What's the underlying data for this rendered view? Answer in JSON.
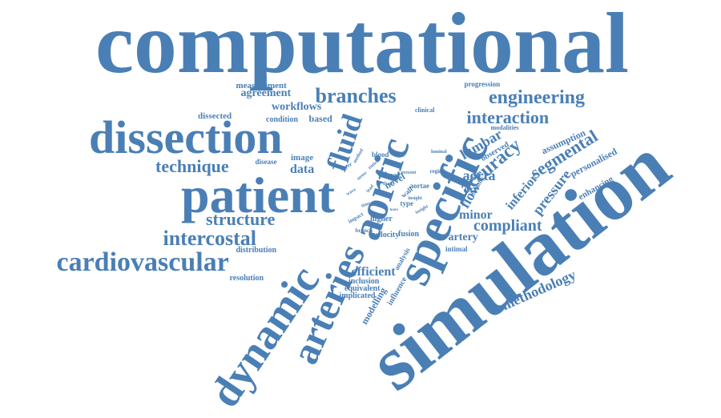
{
  "colors": {
    "word": "#4a7fb5",
    "background": "#ffffff"
  },
  "words": [
    {
      "text": "computational"
    },
    {
      "text": "simulation"
    },
    {
      "text": "patient"
    },
    {
      "text": "dissection"
    },
    {
      "text": "specific"
    },
    {
      "text": "aortic"
    },
    {
      "text": "dynamic"
    },
    {
      "text": "arteries"
    },
    {
      "text": "fluid"
    },
    {
      "text": "cardiovascular"
    },
    {
      "text": "intercostal"
    },
    {
      "text": "branches"
    },
    {
      "text": "engineering"
    },
    {
      "text": "interaction"
    },
    {
      "text": "technique"
    },
    {
      "text": "structure"
    },
    {
      "text": "accuracy"
    },
    {
      "text": "segmental"
    },
    {
      "text": "methodology"
    },
    {
      "text": "compliant"
    },
    {
      "text": "lumbar"
    },
    {
      "text": "aorta"
    },
    {
      "text": "minor"
    },
    {
      "text": "pressure"
    },
    {
      "text": "flow"
    },
    {
      "text": "inferior"
    },
    {
      "text": "data"
    },
    {
      "text": "efficient"
    },
    {
      "text": "artery"
    },
    {
      "text": "agreement"
    },
    {
      "text": "workflows"
    },
    {
      "text": "measurement"
    },
    {
      "text": "based"
    },
    {
      "text": "condition"
    },
    {
      "text": "dissected"
    },
    {
      "text": "image"
    },
    {
      "text": "disease"
    },
    {
      "text": "personalised"
    },
    {
      "text": "assumption"
    },
    {
      "text": "enhancing"
    },
    {
      "text": "modelling"
    },
    {
      "text": "implicated"
    },
    {
      "text": "equivalent"
    },
    {
      "text": "inclusion"
    },
    {
      "text": "resolution"
    },
    {
      "text": "distribution"
    },
    {
      "text": "fusion"
    },
    {
      "text": "intimal"
    },
    {
      "text": "analysis"
    },
    {
      "text": "influence"
    },
    {
      "text": "velocity"
    },
    {
      "text": "higher"
    },
    {
      "text": "novel"
    },
    {
      "text": "blood"
    },
    {
      "text": "shear"
    },
    {
      "text": "wall"
    },
    {
      "text": "type"
    },
    {
      "text": "aortae"
    },
    {
      "text": "layer"
    },
    {
      "text": "clinical"
    },
    {
      "text": "progression"
    },
    {
      "text": "modalities"
    },
    {
      "text": "observed"
    },
    {
      "text": "healthy"
    },
    {
      "text": "region"
    },
    {
      "text": "luminal"
    },
    {
      "text": "insight"
    },
    {
      "text": "present"
    },
    {
      "text": "method"
    },
    {
      "text": "branch"
    },
    {
      "text": "impact"
    },
    {
      "text": "thad"
    },
    {
      "text": "time"
    },
    {
      "text": "stress"
    },
    {
      "text": "wave"
    },
    {
      "text": "entire"
    },
    {
      "text": "insight"
    },
    {
      "text": "lead"
    },
    {
      "text": "tears"
    }
  ]
}
